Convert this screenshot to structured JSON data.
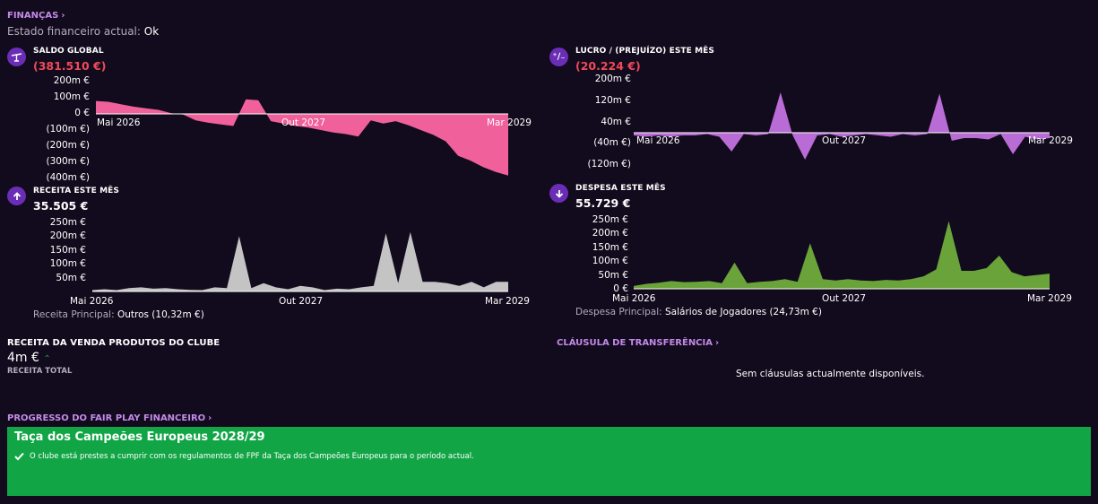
{
  "header": {
    "title": "FINANÇAS",
    "status_label": "Estado financeiro actual:",
    "status_value": "Ok"
  },
  "colors": {
    "pink": "#f0609a",
    "violet": "#b96bd6",
    "grey": "#c4c4c4",
    "green": "#6aa33a",
    "accent": "#c38ae8",
    "negative": "#f04a57",
    "banner": "#11a545"
  },
  "saldo": {
    "title": "SALDO GLOBAL",
    "value": "(381.510 €)",
    "icon": "balance-scale-icon"
  },
  "lucro": {
    "title": "LUCRO / (PREJUÍZO) ESTE MÊS",
    "value": "(20.224 €)",
    "icon": "plus-minus-icon"
  },
  "receita": {
    "title": "RECEITA ESTE MÊS",
    "value": "35.505 €",
    "icon": "arrow-up-icon",
    "main_label": "Receita Principal:",
    "main_value": "Outros (10,32m €)"
  },
  "despesa": {
    "title": "DESPESA ESTE MÊS",
    "value": "55.729 €",
    "icon": "arrow-down-icon",
    "main_label": "Despesa Principal:",
    "main_value": "Salários de Jogadores (24,73m €)"
  },
  "produtos": {
    "title": "RECEITA DA VENDA PRODUTOS DO CLUBE",
    "value": "4m €",
    "sublabel": "RECEITA TOTAL"
  },
  "clausula": {
    "title": "CLÁUSULA DE TRANSFERÊNCIA",
    "empty": "Sem cláusulas actualmente disponíveis."
  },
  "fairplay": {
    "title": "PROGRESSO DO FAIR PLAY FINANCEIRO",
    "competition": "Taça dos Campeões Europeus 2028/29",
    "message": "O clube está prestes a cumprir com os regulamentos de FPF da Taça dos Campeões Europeus para o período actual."
  },
  "chart_data": [
    {
      "id": "saldo",
      "type": "area",
      "x_start": "Mai 2026",
      "x_end": "Mar 2029",
      "xticks": [
        "Mai 2026",
        "Out 2027",
        "Mar 2029"
      ],
      "yticks": [
        "200m €",
        "100m €",
        "0 €",
        "(100m €)",
        "(200m €)",
        "(300m €)",
        "(400m €)"
      ],
      "ylim": [
        -400,
        200
      ],
      "values": [
        80,
        75,
        60,
        45,
        35,
        25,
        5,
        -5,
        -40,
        -55,
        -65,
        -75,
        90,
        85,
        -45,
        -60,
        -75,
        -85,
        -100,
        -115,
        -125,
        -140,
        -40,
        -60,
        -45,
        -70,
        -100,
        -130,
        -170,
        -260,
        -290,
        -330,
        -360,
        -382
      ]
    },
    {
      "id": "lucro",
      "type": "area",
      "x_start": "Mai 2026",
      "x_end": "Mar 2029",
      "xticks": [
        "Mai 2026",
        "Out 2027",
        "Mar 2029"
      ],
      "yticks": [
        "200m €",
        "120m €",
        "40m €",
        "(40m €)",
        "(120m €)"
      ],
      "ylim": [
        -120,
        200
      ],
      "values": [
        -10,
        -15,
        -10,
        -15,
        -10,
        -10,
        -5,
        -15,
        -70,
        -5,
        -10,
        -5,
        150,
        -10,
        -100,
        -10,
        -5,
        -15,
        -10,
        -5,
        -10,
        -15,
        -5,
        -10,
        -5,
        145,
        -30,
        -20,
        -20,
        -25,
        -5,
        -80,
        -15,
        -25,
        -20
      ]
    },
    {
      "id": "receita",
      "type": "area",
      "x_start": "Mai 2026",
      "x_end": "Mar 2029",
      "xticks": [
        "Mai 2026",
        "Out 2027",
        "Mar 2029"
      ],
      "yticks": [
        "250m €",
        "200m €",
        "150m €",
        "100m €",
        "50m €"
      ],
      "ylim": [
        0,
        250
      ],
      "values": [
        5,
        8,
        5,
        12,
        15,
        10,
        12,
        8,
        6,
        5,
        15,
        12,
        200,
        12,
        30,
        15,
        8,
        20,
        15,
        5,
        10,
        8,
        15,
        20,
        210,
        30,
        215,
        35,
        35,
        30,
        20,
        35,
        15,
        35,
        35
      ]
    },
    {
      "id": "despesa",
      "type": "area",
      "x_start": "Mai 2026",
      "x_end": "Mar 2029",
      "xticks": [
        "Mai 2026",
        "Out 2027",
        "Mar 2029"
      ],
      "yticks": [
        "250m €",
        "200m €",
        "150m €",
        "100m €",
        "50m €",
        "0 €"
      ],
      "ylim": [
        0,
        250
      ],
      "values": [
        10,
        18,
        22,
        28,
        24,
        25,
        28,
        20,
        95,
        20,
        25,
        28,
        35,
        25,
        165,
        35,
        30,
        35,
        30,
        28,
        32,
        30,
        35,
        45,
        70,
        245,
        65,
        65,
        75,
        120,
        60,
        45,
        50,
        55
      ]
    }
  ]
}
